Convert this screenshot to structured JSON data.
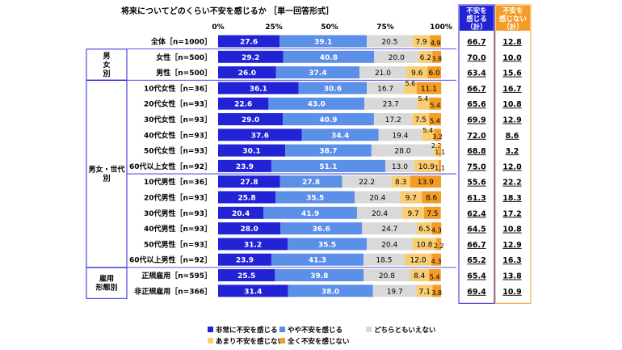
{
  "chart_data": {
    "type": "bar",
    "stacked": true,
    "orientation": "horizontal",
    "title": "将来についてどのくらい不安を感じるか ［単一回答形式］",
    "axis": {
      "ticks": [
        "0%",
        "25%",
        "50%",
        "75%",
        "100%"
      ],
      "xlim": [
        0,
        100
      ]
    },
    "legend_position": "bottom",
    "series": [
      {
        "name": "非常に不安を感じる",
        "color": "#2323d6"
      },
      {
        "name": "やや不安を感じる",
        "color": "#5b8fe8"
      },
      {
        "name": "どちらともいえない",
        "color": "#d9d9d9"
      },
      {
        "name": "あまり不安を感じない",
        "color": "#f9cd74"
      },
      {
        "name": "全く不安を感じない",
        "color": "#f39c27"
      }
    ],
    "summary_headers": [
      {
        "label": "不安を感じる（計）",
        "color": "#2323d6"
      },
      {
        "label": "不安を感じない（計）",
        "color": "#f39c27"
      }
    ],
    "groups": [
      {
        "label": "",
        "rows": [
          0
        ]
      },
      {
        "label": "男女別",
        "rows": [
          1,
          2
        ]
      },
      {
        "label": "男女・世代別",
        "rows": [
          3,
          4,
          5,
          6,
          7,
          8,
          9,
          10,
          11,
          12,
          13,
          14
        ]
      },
      {
        "label": "雇用形態別",
        "rows": [
          15,
          16
        ]
      }
    ],
    "rows": [
      {
        "label": "全体［n=1000］",
        "values": [
          27.6,
          39.1,
          20.5,
          7.9,
          4.9
        ],
        "total_anxious": "66.7",
        "total_not": "12.8"
      },
      {
        "label": "女性［n=500］",
        "values": [
          29.2,
          40.8,
          20.0,
          6.2,
          3.8
        ],
        "total_anxious": "70.0",
        "total_not": "10.0"
      },
      {
        "label": "男性［n=500］",
        "values": [
          26.0,
          37.4,
          21.0,
          9.6,
          6.0
        ],
        "total_anxious": "63.4",
        "total_not": "15.6"
      },
      {
        "label": "10代女性［n=36］",
        "values": [
          36.1,
          30.6,
          16.7,
          5.6,
          11.1
        ],
        "total_anxious": "66.7",
        "total_not": "16.7"
      },
      {
        "label": "20代女性［n=93］",
        "values": [
          22.6,
          43.0,
          23.7,
          5.4,
          5.4
        ],
        "total_anxious": "65.6",
        "total_not": "10.8"
      },
      {
        "label": "30代女性［n=93］",
        "values": [
          29.0,
          40.9,
          17.2,
          7.5,
          5.4
        ],
        "total_anxious": "69.9",
        "total_not": "12.9"
      },
      {
        "label": "40代女性［n=93］",
        "values": [
          37.6,
          34.4,
          19.4,
          5.4,
          3.2
        ],
        "total_anxious": "72.0",
        "total_not": "8.6"
      },
      {
        "label": "50代女性［n=93］",
        "values": [
          30.1,
          38.7,
          28.0,
          2.2,
          1.1
        ],
        "total_anxious": "68.8",
        "total_not": "3.2"
      },
      {
        "label": "60代以上女性［n=92］",
        "values": [
          23.9,
          51.1,
          13.0,
          10.9,
          1.1
        ],
        "total_anxious": "75.0",
        "total_not": "12.0"
      },
      {
        "label": "10代男性［n=36］",
        "values": [
          27.8,
          27.8,
          22.2,
          8.3,
          13.9
        ],
        "total_anxious": "55.6",
        "total_not": "22.2"
      },
      {
        "label": "20代男性［n=93］",
        "values": [
          25.8,
          35.5,
          20.4,
          9.7,
          8.6
        ],
        "total_anxious": "61.3",
        "total_not": "18.3"
      },
      {
        "label": "30代男性［n=93］",
        "values": [
          20.4,
          41.9,
          20.4,
          9.7,
          7.5
        ],
        "total_anxious": "62.4",
        "total_not": "17.2"
      },
      {
        "label": "40代男性［n=93］",
        "values": [
          28.0,
          36.6,
          24.7,
          6.5,
          4.3
        ],
        "total_anxious": "64.5",
        "total_not": "10.8"
      },
      {
        "label": "50代男性［n=93］",
        "values": [
          31.2,
          35.5,
          20.4,
          10.8,
          2.2
        ],
        "total_anxious": "66.7",
        "total_not": "12.9"
      },
      {
        "label": "60代以上男性［n=92］",
        "values": [
          23.9,
          41.3,
          18.5,
          12.0,
          4.3
        ],
        "total_anxious": "65.2",
        "total_not": "16.3"
      },
      {
        "label": "正規雇用［n=595］",
        "values": [
          25.5,
          39.8,
          20.8,
          8.4,
          5.4
        ],
        "total_anxious": "65.4",
        "total_not": "13.8"
      },
      {
        "label": "非正規雇用［n=366］",
        "values": [
          31.4,
          38.0,
          19.7,
          7.1,
          3.8
        ],
        "total_anxious": "69.4",
        "total_not": "10.9"
      }
    ]
  }
}
